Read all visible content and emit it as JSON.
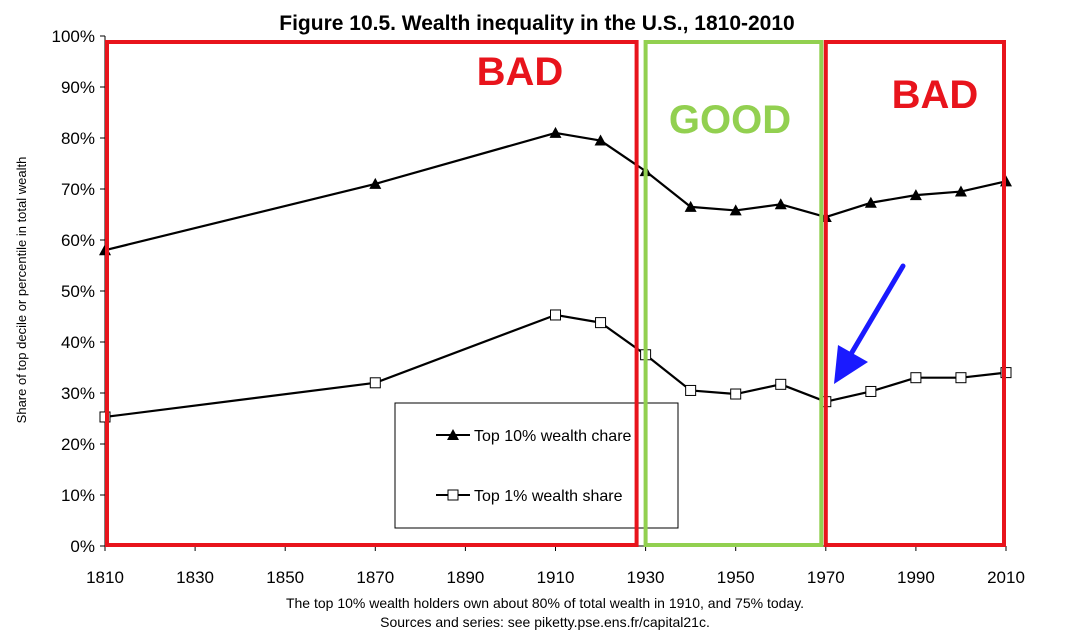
{
  "chart_data": {
    "type": "line",
    "title": "Figure 10.5. Wealth inequality in the U.S., 1810-2010",
    "ylabel": "Share of top decile or percentile in total wealth",
    "xlim": [
      1810,
      2010
    ],
    "ylim": [
      0,
      100
    ],
    "x_ticks": [
      "1810",
      "1830",
      "1850",
      "1870",
      "1890",
      "1910",
      "1930",
      "1950",
      "1970",
      "1990",
      "2010"
    ],
    "y_ticks": [
      "0%",
      "10%",
      "20%",
      "30%",
      "40%",
      "50%",
      "60%",
      "70%",
      "80%",
      "90%",
      "100%"
    ],
    "series": [
      {
        "name": "Top 10% wealth chare",
        "marker": "filled-triangle",
        "x": [
          1810,
          1870,
          1910,
          1920,
          1930,
          1940,
          1950,
          1960,
          1970,
          1980,
          1990,
          2000,
          2010
        ],
        "values": [
          58,
          71,
          81,
          79.5,
          73.5,
          66.5,
          65.8,
          67,
          64.5,
          67.3,
          68.8,
          69.5,
          71.5
        ]
      },
      {
        "name": "Top 1% wealth share",
        "marker": "open-square",
        "x": [
          1810,
          1870,
          1910,
          1920,
          1930,
          1940,
          1950,
          1960,
          1970,
          1980,
          1990,
          2000,
          2010
        ],
        "values": [
          25.3,
          32,
          45.3,
          43.8,
          37.5,
          30.5,
          29.8,
          31.7,
          28.3,
          30.3,
          33,
          33,
          34
        ]
      }
    ],
    "grid": false,
    "legend_position": "bottom-center",
    "annotations": [
      {
        "label": "BAD",
        "x_range": [
          1810,
          1928
        ],
        "color": "#e8141c"
      },
      {
        "label": "GOOD",
        "x_range": [
          1930,
          1969
        ],
        "color": "#92d050"
      },
      {
        "label": "BAD",
        "x_range": [
          1970,
          2010
        ],
        "color": "#e8141c"
      }
    ],
    "arrow": {
      "color": "#1a1aff",
      "points_to": {
        "x": 1970,
        "y": 30
      }
    },
    "caption_lines": [
      "The top 10% wealth holders own about 80% of total wealth in 1910, and 75% today.",
      "Sources and series: see piketty.pse.ens.fr/capital21c."
    ]
  }
}
